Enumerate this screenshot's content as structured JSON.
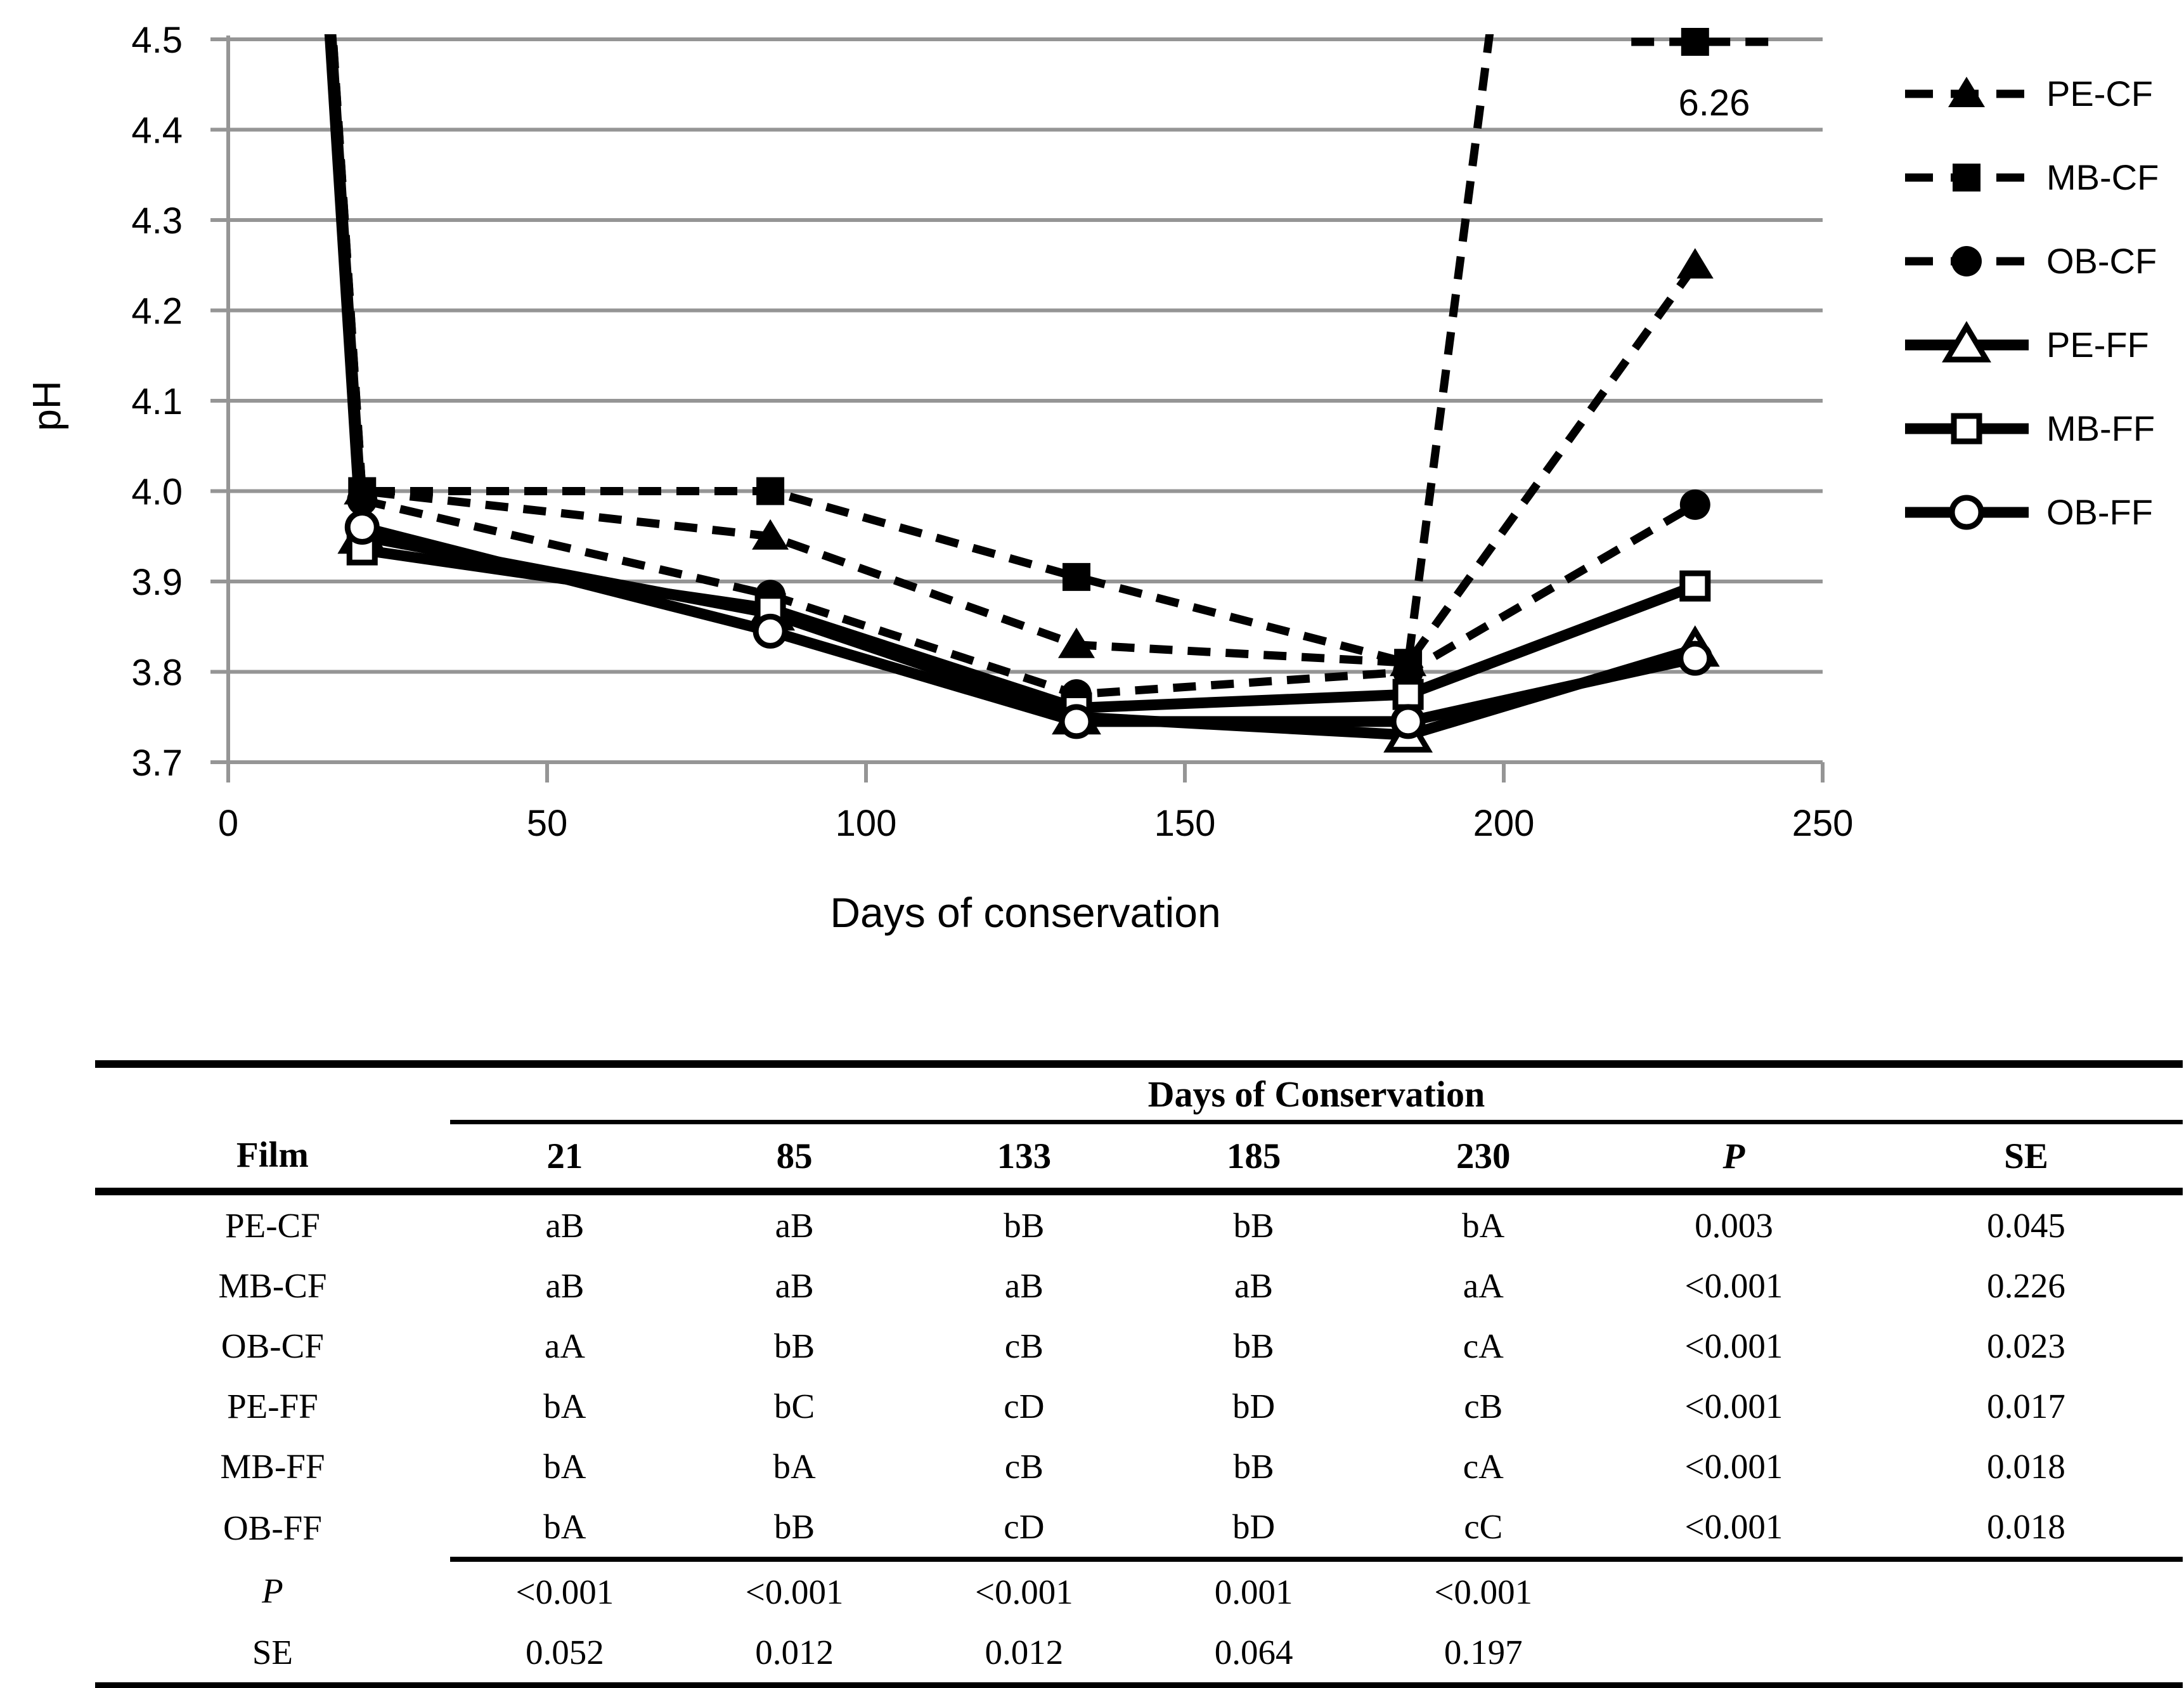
{
  "chart_data": {
    "type": "line",
    "title": "",
    "xlabel": "Days of conservation",
    "ylabel": "pH",
    "xlim": [
      0,
      250
    ],
    "ylim": [
      3.7,
      4.5
    ],
    "x_ticks": [
      "0",
      "50",
      "100",
      "150",
      "200",
      "250"
    ],
    "y_ticks": [
      "4.5",
      "4.4",
      "4.3",
      "4.2",
      "4.1",
      "4.0",
      "3.9",
      "3.8",
      "3.7"
    ],
    "grid": "horizontal",
    "legend_position": "right",
    "days": [
      0,
      21,
      85,
      133,
      185,
      230
    ],
    "series": [
      {
        "name": "PE-CF",
        "line_style": "dashed",
        "marker": "triangle",
        "marker_fill": "filled",
        "values": [
          6.3,
          4.0,
          3.95,
          3.83,
          3.81,
          4.25
        ]
      },
      {
        "name": "MB-CF",
        "line_style": "dashed",
        "marker": "square",
        "marker_fill": "filled",
        "clamp_overflow": true,
        "values": [
          6.3,
          4.0,
          4.0,
          3.905,
          3.81,
          6.26
        ]
      },
      {
        "name": "OB-CF",
        "line_style": "dashed",
        "marker": "circle",
        "marker_fill": "filled",
        "values": [
          6.3,
          3.99,
          3.885,
          3.775,
          3.8,
          3.985
        ]
      },
      {
        "name": "PE-FF",
        "line_style": "solid",
        "marker": "triangle",
        "marker_fill": "open",
        "values": [
          6.3,
          3.95,
          3.865,
          3.75,
          3.73,
          3.825
        ]
      },
      {
        "name": "MB-FF",
        "line_style": "solid",
        "marker": "square",
        "marker_fill": "open",
        "values": [
          6.3,
          3.935,
          3.87,
          3.76,
          3.775,
          3.895
        ]
      },
      {
        "name": "OB-FF",
        "line_style": "solid",
        "marker": "circle",
        "marker_fill": "open",
        "values": [
          6.3,
          3.96,
          3.845,
          3.745,
          3.745,
          3.815
        ]
      }
    ],
    "annotation": {
      "text": "6.26",
      "day": 233,
      "clip_dash_from_day": 220,
      "clip_dash_to_day": 243
    },
    "colors": {
      "line": "#000000",
      "grid": "#959595",
      "text": "#000000",
      "background": "#ffffff"
    }
  },
  "table": {
    "spanner": "Days of Conservation",
    "columns": [
      "Film",
      "21",
      "85",
      "133",
      "185",
      "230",
      "P",
      "SE"
    ],
    "rows": [
      {
        "film": "PE-CF",
        "values": [
          "aB",
          "aB",
          "bB",
          "bB",
          "bA",
          "0.003",
          "0.045"
        ]
      },
      {
        "film": "MB-CF",
        "values": [
          "aB",
          "aB",
          "aB",
          "aB",
          "aA",
          "<0.001",
          "0.226"
        ]
      },
      {
        "film": "OB-CF",
        "values": [
          "aA",
          "bB",
          "cB",
          "bB",
          "cA",
          "<0.001",
          "0.023"
        ]
      },
      {
        "film": "PE-FF",
        "values": [
          "bA",
          "bC",
          "cD",
          "bD",
          "cB",
          "<0.001",
          "0.017"
        ]
      },
      {
        "film": "MB-FF",
        "values": [
          "bA",
          "bA",
          "cB",
          "bB",
          "cA",
          "<0.001",
          "0.018"
        ]
      },
      {
        "film": "OB-FF",
        "values": [
          "bA",
          "bB",
          "cD",
          "bD",
          "cC",
          "<0.001",
          "0.018"
        ]
      }
    ],
    "footer_rows": [
      {
        "label": "P",
        "italic": true,
        "values": [
          "<0.001",
          "<0.001",
          "<0.001",
          "0.001",
          "<0.001",
          "",
          ""
        ]
      },
      {
        "label": "SE",
        "italic": false,
        "values": [
          "0.052",
          "0.012",
          "0.012",
          "0.064",
          "0.197",
          "",
          ""
        ]
      }
    ]
  }
}
